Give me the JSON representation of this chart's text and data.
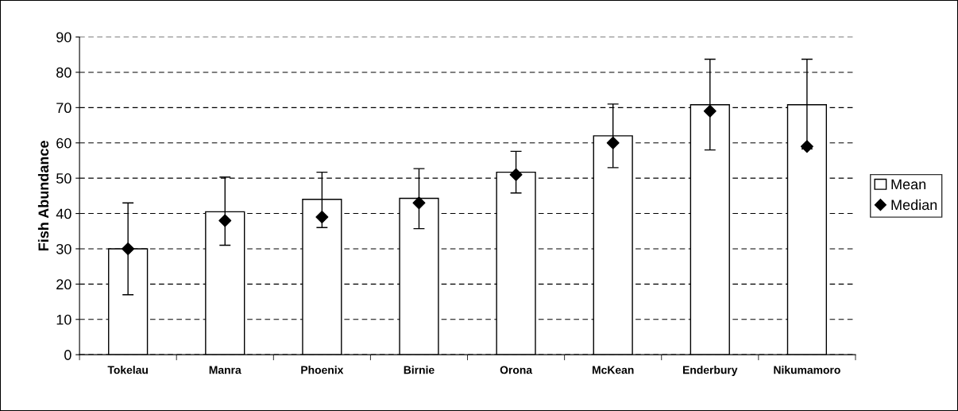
{
  "chart_data": {
    "type": "bar",
    "ylabel": "Fish Abundance",
    "categories": [
      "Tokelau",
      "Manra",
      "Phoenix",
      "Birnie",
      "Orona",
      "McKean",
      "Enderbury",
      "Nikumamoro"
    ],
    "series": [
      {
        "name": "Mean",
        "color": "#ffffff",
        "values": [
          30,
          40.5,
          44,
          44.3,
          51.7,
          62,
          70.8,
          70.8
        ],
        "errors": [
          [
            17,
            43
          ],
          [
            31,
            50.3
          ],
          [
            36,
            51.7
          ],
          [
            35.7,
            52.7
          ],
          [
            45.8,
            57.6
          ],
          [
            53,
            71
          ],
          [
            58,
            83.7
          ],
          [
            58.3,
            83.7
          ]
        ]
      },
      {
        "name": "Median",
        "type": "scatter",
        "color": "#000000",
        "marker": "diamond",
        "x": [
          "Tokelau",
          "Manra",
          "Phoenix",
          "Birnie",
          "Orona",
          "McKean",
          "Enderbury",
          "Nikumamoro"
        ],
        "values": [
          30,
          38,
          39,
          43,
          51,
          60,
          69,
          59
        ]
      }
    ],
    "ylim": [
      0,
      90
    ],
    "yticks": [
      0,
      10,
      20,
      30,
      40,
      50,
      60,
      70,
      80,
      90
    ],
    "grid": "y",
    "legend": "right"
  }
}
